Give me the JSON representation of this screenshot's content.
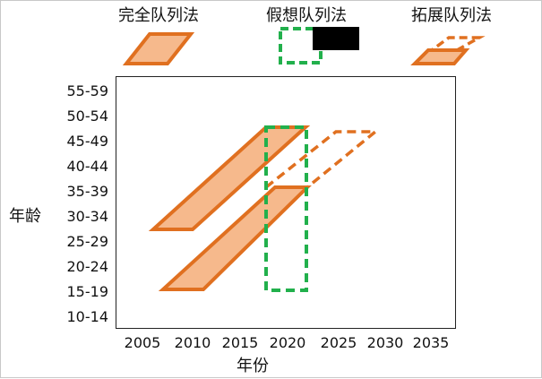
{
  "legend": {
    "full_cohort": "完全队列法",
    "hypothetical_cohort": "假想队列法",
    "extended_cohort": "拓展队列法"
  },
  "axes": {
    "ylabel": "年龄",
    "xlabel": "年份",
    "y_ticks": [
      "55-59",
      "50-54",
      "45-49",
      "40-44",
      "35-39",
      "30-34",
      "25-29",
      "20-24",
      "15-19",
      "10-14"
    ],
    "x_ticks": [
      "2005",
      "2010",
      "2015",
      "2020",
      "2025",
      "2030",
      "2035"
    ]
  },
  "colors": {
    "orange_stroke": "#E07020",
    "orange_fill": "#F6B98C",
    "green_dash": "#22B04C",
    "redaction": "#000000",
    "frame": "#222222"
  }
}
